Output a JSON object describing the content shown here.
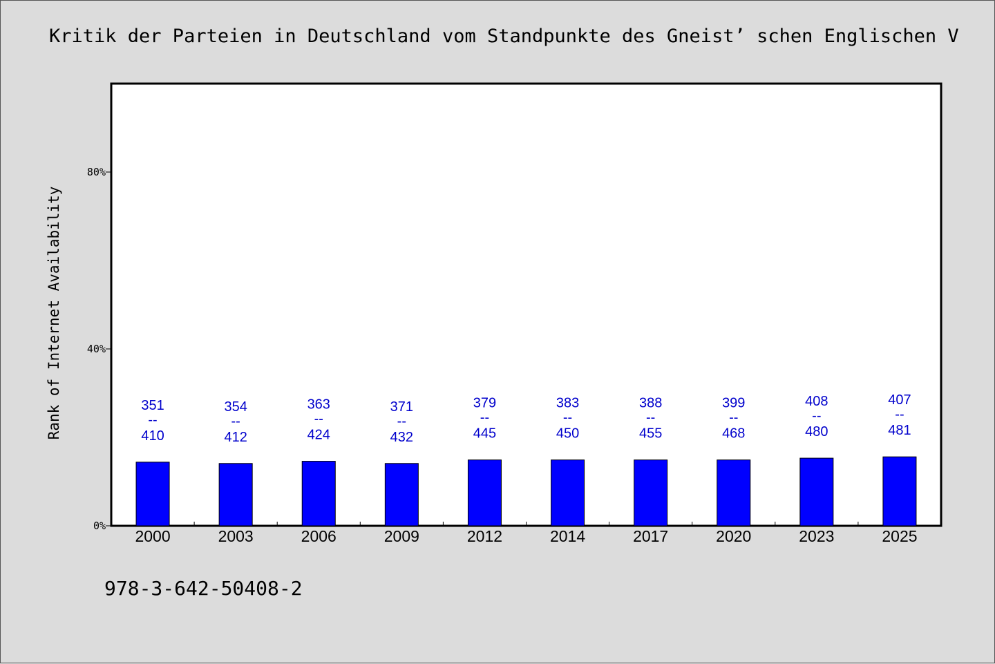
{
  "title": "Kritik der Parteien in Deutschland vom Standpunkte des Gneist’ schen Englischen V",
  "footer": "978-3-642-50408-2",
  "colors": {
    "background": "#dcdcdc",
    "plot_background": "#ffffff",
    "bar": "#0000ff",
    "label": "#0000cc",
    "axis": "#000000"
  },
  "chart_data": {
    "type": "bar",
    "title": "Kritik der Parteien in Deutschland vom Standpunkte des Gneist’ schen Englischen V",
    "xlabel": "",
    "ylabel": "Rank of Internet Availability",
    "categories": [
      "2000",
      "2003",
      "2006",
      "2009",
      "2012",
      "2014",
      "2017",
      "2020",
      "2023",
      "2025"
    ],
    "values": [
      14.4,
      14.1,
      14.6,
      14.1,
      14.9,
      14.9,
      14.9,
      14.9,
      15.3,
      15.6
    ],
    "annotations": [
      {
        "top": "351",
        "sep": "--",
        "bottom": "410"
      },
      {
        "top": "354",
        "sep": "--",
        "bottom": "412"
      },
      {
        "top": "363",
        "sep": "--",
        "bottom": "424"
      },
      {
        "top": "371",
        "sep": "--",
        "bottom": "432"
      },
      {
        "top": "379",
        "sep": "--",
        "bottom": "445"
      },
      {
        "top": "383",
        "sep": "--",
        "bottom": "450"
      },
      {
        "top": "388",
        "sep": "--",
        "bottom": "455"
      },
      {
        "top": "399",
        "sep": "--",
        "bottom": "468"
      },
      {
        "top": "408",
        "sep": "--",
        "bottom": "480"
      },
      {
        "top": "407",
        "sep": "--",
        "bottom": "481"
      }
    ],
    "y_unit": "%",
    "ylim": [
      0,
      100
    ],
    "yticks": [
      0,
      40,
      80
    ],
    "ytick_labels": [
      "0%",
      "40%",
      "80%"
    ],
    "grid": false,
    "legend": "none"
  }
}
